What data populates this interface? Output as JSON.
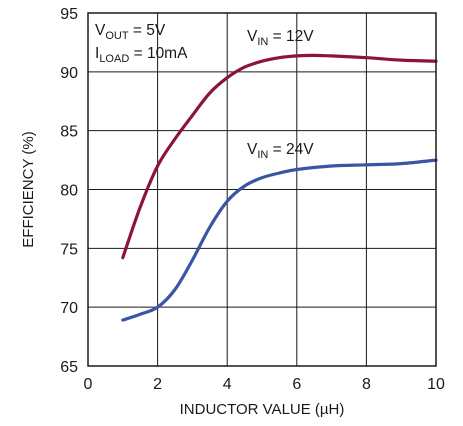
{
  "chart_data": {
    "type": "line",
    "xlabel": "INDUCTOR VALUE (µH)",
    "ylabel": "EFFICIENCY (%)",
    "xlim": [
      0,
      10
    ],
    "ylim": [
      65,
      95
    ],
    "xticks": [
      "0",
      "2",
      "4",
      "6",
      "8",
      "10"
    ],
    "yticks": [
      "65",
      "70",
      "75",
      "80",
      "85",
      "90",
      "95"
    ],
    "grid": true,
    "conditions": {
      "vout": {
        "main": "V",
        "sub": "OUT",
        "rest": " = 5V"
      },
      "iload": {
        "main": "I",
        "sub": "LOAD",
        "rest": " = 10mA"
      }
    },
    "series": [
      {
        "label": {
          "main": "V",
          "sub": "IN",
          "rest": " = 12V"
        },
        "color": "#8b1538",
        "x": [
          1.0,
          1.5,
          2.0,
          2.5,
          3.0,
          3.5,
          4.0,
          4.5,
          5.0,
          5.5,
          6.0,
          6.5,
          7.0,
          8.0,
          9.0,
          10.0
        ],
        "y": [
          74.2,
          78.5,
          82.0,
          84.3,
          86.3,
          88.2,
          89.5,
          90.4,
          90.9,
          91.2,
          91.35,
          91.4,
          91.35,
          91.2,
          91.0,
          90.9
        ]
      },
      {
        "label": {
          "main": "V",
          "sub": "IN",
          "rest": " = 24V"
        },
        "color": "#3a55a4",
        "x": [
          1.0,
          1.5,
          2.0,
          2.5,
          3.0,
          3.5,
          4.0,
          4.5,
          5.0,
          5.5,
          6.0,
          7.0,
          8.0,
          9.0,
          10.0
        ],
        "y": [
          68.9,
          69.4,
          70.0,
          71.5,
          74.0,
          76.8,
          79.0,
          80.3,
          81.0,
          81.4,
          81.7,
          82.0,
          82.1,
          82.2,
          82.5
        ]
      }
    ]
  }
}
